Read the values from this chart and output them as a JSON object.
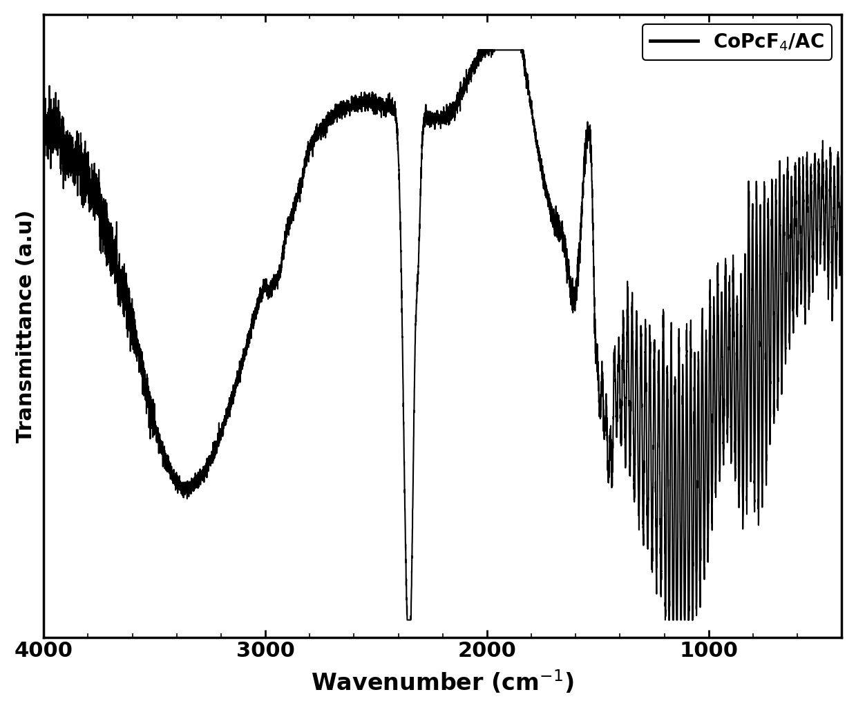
{
  "xlabel": "Wavenumber (cm$^{-1}$)",
  "ylabel": "Transmittance (a.u)",
  "legend_label": "CoPcF$_4$/AC",
  "line_color": "#000000",
  "background_color": "#ffffff",
  "xlim": [
    4000,
    400
  ],
  "xlabel_fontsize": 24,
  "ylabel_fontsize": 22,
  "tick_fontsize": 22,
  "legend_fontsize": 20,
  "xticks": [
    4000,
    3000,
    2000,
    1000
  ],
  "line_width": 1.5,
  "figsize": [
    12.39,
    10.28
  ],
  "dpi": 100
}
